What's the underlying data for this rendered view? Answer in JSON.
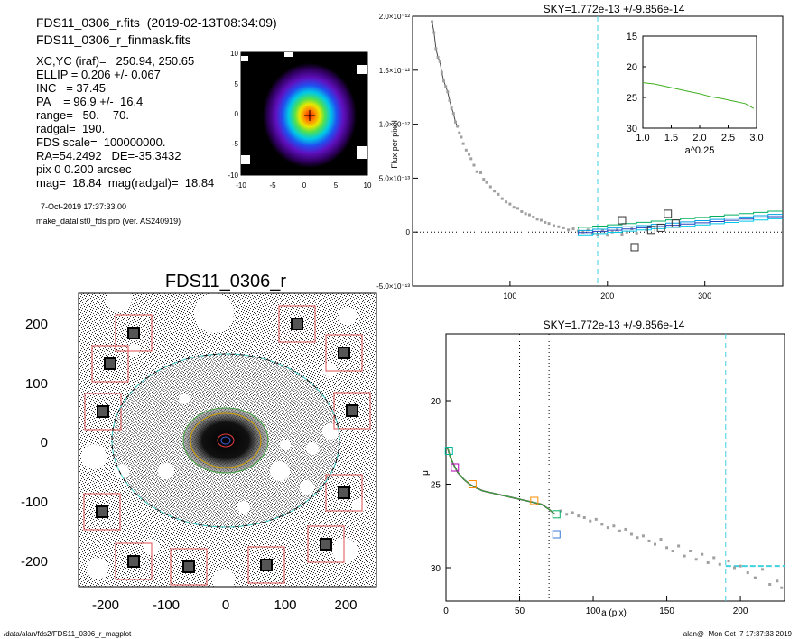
{
  "header": {
    "file_line": "FDS11_0306_r.fits  (2019-02-13T08:34:09)",
    "mask_line": "FDS11_0306_r_finmask.fits",
    "params": [
      "XC,YC (iraf)=   250.94, 250.65",
      "ELLIP = 0.206 +/- 0.067",
      "INC   = 37.45",
      "PA    = 96.9 +/-  16.4",
      "range=   50.-   70.",
      "radgal=  190.",
      "FDS scale=  100000000.",
      "RA=54.2492   DE=-35.3432",
      "pix 0 0.200 arcsec",
      "mag=  18.84  mag(radgal)=  18.84"
    ],
    "date_line": "7-Oct-2019 17:37:33.00",
    "program_line": "make_datalist0_fds.pro (ver. AS240919)"
  },
  "footer": {
    "left": "/data/alan/fds2/FDS11_0306_r_magplot",
    "right": "alan@  Mon Oct  7 17:37:33 2019"
  },
  "thumbnail": {
    "x_ticks": [
      "-10",
      "-5",
      "0",
      "5",
      "10"
    ],
    "y_ticks": [
      "10",
      "5",
      "0",
      "-5",
      "-10"
    ]
  },
  "image_panel": {
    "title": "FDS11_0306_r",
    "x_ticks": [
      "-200",
      "-100",
      "0",
      "100",
      "200"
    ],
    "y_ticks": [
      "200",
      "100",
      "0",
      "-100",
      "-200"
    ]
  },
  "chart_data": [
    {
      "type": "scatter",
      "title": "SKY=1.772e-13 +/-9.856e-14",
      "xlabel": "",
      "ylabel": "Flux per pixel",
      "xlim": [
        0,
        380
      ],
      "ylim": [
        -5e-13,
        2e-12
      ],
      "x_ticks": [
        "100",
        "200",
        "300"
      ],
      "y_ticks": [
        "-5.0×10⁻¹³",
        "0",
        "5.0×10⁻¹³",
        "1.0×10⁻¹²",
        "1.5×10⁻¹²",
        "2.0×10⁻¹²"
      ],
      "vline_x": 190,
      "points": [
        [
          20,
          1.95e-12
        ],
        [
          22,
          1.85e-12
        ],
        [
          24,
          1.7e-12
        ],
        [
          26,
          1.62e-12
        ],
        [
          28,
          1.58e-12
        ],
        [
          30,
          1.48e-12
        ],
        [
          32,
          1.4e-12
        ],
        [
          34,
          1.35e-12
        ],
        [
          36,
          1.3e-12
        ],
        [
          38,
          1.22e-12
        ],
        [
          40,
          1.15e-12
        ],
        [
          42,
          1.1e-12
        ],
        [
          44,
          1.02e-12
        ],
        [
          46,
          9.8e-13
        ],
        [
          48,
          9.2e-13
        ],
        [
          50,
          8.8e-13
        ],
        [
          52,
          8.2e-13
        ],
        [
          55,
          7.6e-13
        ],
        [
          58,
          7.2e-13
        ],
        [
          60,
          6.8e-13
        ],
        [
          63,
          6.2e-13
        ],
        [
          66,
          5.6e-13
        ],
        [
          70,
          5.5e-13
        ],
        [
          73,
          4.9e-13
        ],
        [
          76,
          4.6e-13
        ],
        [
          80,
          4.2e-13
        ],
        [
          84,
          3.8e-13
        ],
        [
          88,
          3.5e-13
        ],
        [
          92,
          3.1e-13
        ],
        [
          96,
          2.8e-13
        ],
        [
          100,
          2.6e-13
        ],
        [
          104,
          2.3e-13
        ],
        [
          108,
          2.2e-13
        ],
        [
          112,
          1.9e-13
        ],
        [
          116,
          1.7e-13
        ],
        [
          120,
          1.6e-13
        ],
        [
          124,
          1.4e-13
        ],
        [
          128,
          1.2e-13
        ],
        [
          132,
          1.1e-13
        ],
        [
          136,
          9e-14
        ],
        [
          140,
          8e-14
        ],
        [
          145,
          6e-14
        ],
        [
          150,
          5e-14
        ],
        [
          155,
          4e-14
        ],
        [
          160,
          2e-14
        ],
        [
          165,
          3e-14
        ],
        [
          170,
          1e-14
        ],
        [
          175,
          0
        ],
        [
          180,
          2e-14
        ],
        [
          185,
          -1e-14
        ],
        [
          190,
          -2e-14
        ],
        [
          195,
          1e-14
        ],
        [
          200,
          -3e-14
        ],
        [
          205,
          0
        ],
        [
          210,
          2e-14
        ],
        [
          215,
          -2e-14
        ],
        [
          220,
          0
        ],
        [
          225,
          3e-14
        ],
        [
          230,
          -1e-14
        ],
        [
          240,
          2e-14
        ]
      ],
      "boxes": [
        [
          215,
          1.1e-13
        ],
        [
          228,
          -1.4e-13
        ],
        [
          245,
          2e-14
        ],
        [
          255,
          4e-14
        ],
        [
          262,
          1.7e-13
        ],
        [
          270,
          8e-14
        ]
      ],
      "inset": {
        "xlabel": "a^0.25",
        "xlim": [
          1.0,
          3.0
        ],
        "ylim": [
          15,
          30
        ],
        "x_ticks": [
          "1.0",
          "1.5",
          "2.0",
          "2.5",
          "3.0"
        ],
        "y_ticks": [
          "15",
          "20",
          "25",
          "30"
        ],
        "line": [
          [
            1.0,
            22.6
          ],
          [
            1.2,
            22.8
          ],
          [
            1.4,
            23.2
          ],
          [
            1.6,
            23.6
          ],
          [
            1.8,
            24.0
          ],
          [
            2.0,
            24.4
          ],
          [
            2.2,
            24.9
          ],
          [
            2.4,
            25.2
          ],
          [
            2.6,
            25.6
          ],
          [
            2.8,
            26.0
          ],
          [
            2.95,
            26.8
          ]
        ]
      }
    },
    {
      "type": "scatter",
      "title": "SKY=1.772e-13 +/-9.856e-14",
      "xlabel": "a (pix)",
      "ylabel": "μ",
      "xlim": [
        0,
        230
      ],
      "ylim": [
        32,
        16
      ],
      "x_ticks": [
        "0",
        "50",
        "100",
        "150",
        "200"
      ],
      "y_ticks": [
        "20",
        "25",
        "30"
      ],
      "vlines": [
        50,
        70
      ],
      "vline_cyan": 190,
      "sky_level": 29.9,
      "profile": [
        [
          1,
          22.8
        ],
        [
          3,
          23.4
        ],
        [
          5,
          23.8
        ],
        [
          8,
          24.3
        ],
        [
          12,
          24.7
        ],
        [
          16,
          25.0
        ],
        [
          20,
          25.2
        ],
        [
          25,
          25.4
        ],
        [
          30,
          25.5
        ],
        [
          35,
          25.6
        ],
        [
          40,
          25.7
        ],
        [
          45,
          25.8
        ],
        [
          50,
          25.9
        ],
        [
          55,
          26.0
        ],
        [
          60,
          26.1
        ],
        [
          65,
          26.2
        ],
        [
          70,
          26.5
        ],
        [
          74,
          26.8
        ]
      ],
      "points": [
        [
          78,
          26.6
        ],
        [
          82,
          26.8
        ],
        [
          86,
          26.7
        ],
        [
          90,
          26.9
        ],
        [
          94,
          27.0
        ],
        [
          98,
          27.2
        ],
        [
          102,
          27.1
        ],
        [
          106,
          27.4
        ],
        [
          110,
          27.6
        ],
        [
          114,
          27.5
        ],
        [
          118,
          27.8
        ],
        [
          122,
          27.7
        ],
        [
          126,
          28.0
        ],
        [
          130,
          28.2
        ],
        [
          134,
          28.1
        ],
        [
          138,
          28.4
        ],
        [
          142,
          28.6
        ],
        [
          146,
          28.3
        ],
        [
          150,
          28.8
        ],
        [
          154,
          29.0
        ],
        [
          158,
          28.7
        ],
        [
          162,
          29.3
        ],
        [
          166,
          29.0
        ],
        [
          170,
          29.5
        ],
        [
          174,
          29.2
        ],
        [
          178,
          29.7
        ],
        [
          182,
          29.4
        ],
        [
          186,
          29.8
        ],
        [
          192,
          29.6
        ],
        [
          196,
          30.0
        ],
        [
          200,
          29.9
        ],
        [
          205,
          30.3
        ],
        [
          210,
          30.6
        ],
        [
          215,
          30.1
        ],
        [
          220,
          31.0
        ],
        [
          225,
          30.8
        ],
        [
          228,
          31.2
        ]
      ],
      "boxes": [
        [
          2,
          23.0,
          "#00b89c"
        ],
        [
          6,
          24.0,
          "#b000b0"
        ],
        [
          18,
          25.0,
          "#ff8c00"
        ],
        [
          60,
          26.0,
          "#ff8c00"
        ],
        [
          75,
          26.8,
          "#00b060"
        ],
        [
          75,
          28.0,
          "#3a7ad8"
        ]
      ]
    }
  ]
}
